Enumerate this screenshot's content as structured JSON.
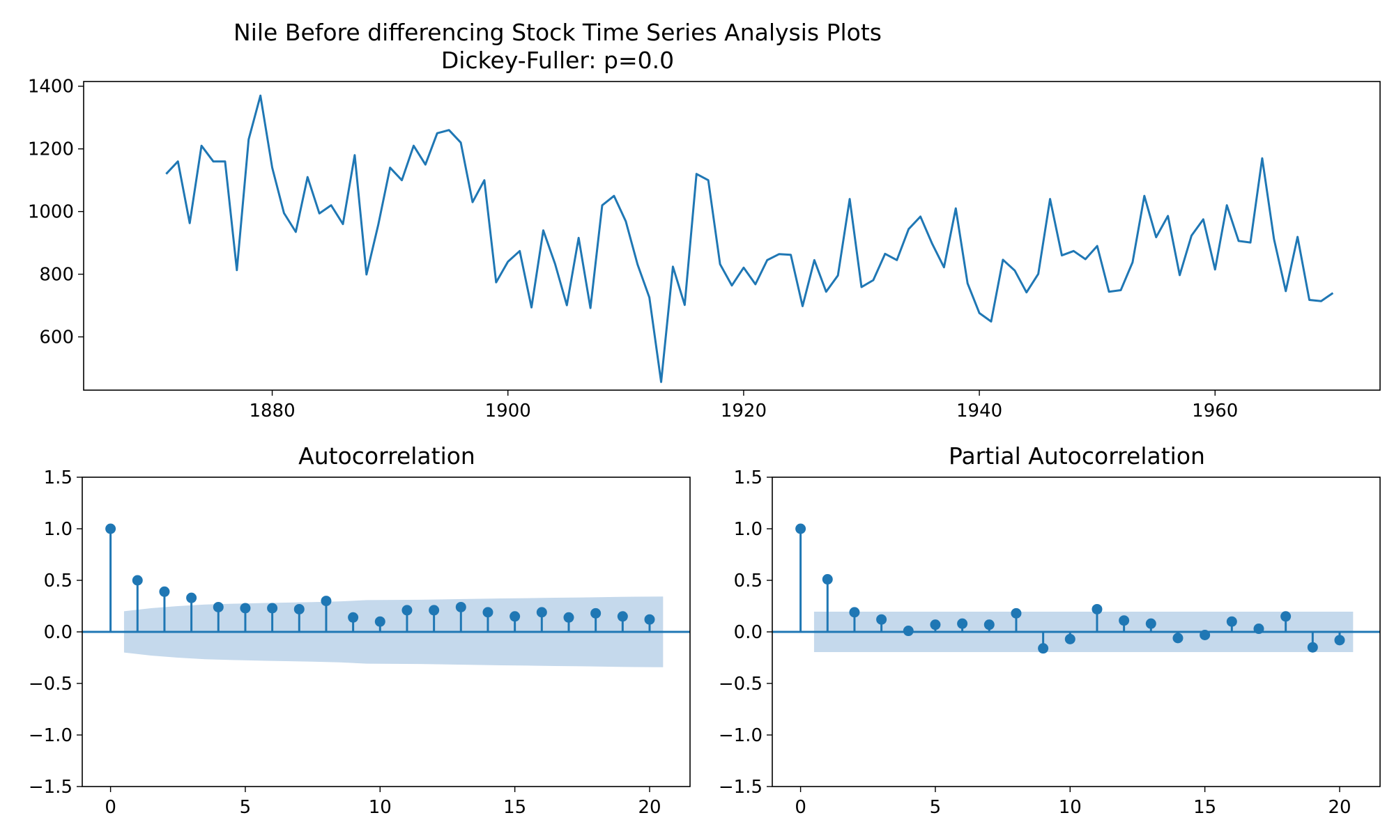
{
  "figure": {
    "title_line1": "Nile Before differencing Stock Time Series Analysis Plots",
    "title_line2": "Dickey-Fuller: p=0.0"
  },
  "chart_data": [
    {
      "type": "line",
      "name": "time-series",
      "color": "#1f77b4",
      "x_start": 1871,
      "x_end": 1970,
      "xlim": [
        1864,
        1974
      ],
      "ylim": [
        430,
        1415
      ],
      "xticks": [
        1880,
        1900,
        1920,
        1940,
        1960
      ],
      "xtick_labels": [
        "1880",
        "1900",
        "1920",
        "1940",
        "1960"
      ],
      "yticks": [
        600,
        800,
        1000,
        1200,
        1400
      ],
      "ytick_labels": [
        "600",
        "800",
        "1000",
        "1200",
        "1400"
      ],
      "values": [
        1120,
        1160,
        963,
        1210,
        1160,
        1160,
        813,
        1230,
        1370,
        1140,
        995,
        935,
        1110,
        994,
        1020,
        960,
        1180,
        799,
        958,
        1140,
        1100,
        1210,
        1150,
        1250,
        1260,
        1220,
        1030,
        1100,
        774,
        840,
        874,
        694,
        940,
        833,
        701,
        916,
        692,
        1020,
        1050,
        969,
        831,
        726,
        456,
        824,
        702,
        1120,
        1100,
        832,
        764,
        821,
        768,
        845,
        864,
        862,
        698,
        845,
        744,
        796,
        1040,
        759,
        781,
        865,
        845,
        944,
        984,
        897,
        822,
        1010,
        771,
        676,
        649,
        846,
        812,
        742,
        801,
        1040,
        860,
        874,
        848,
        890,
        744,
        749,
        838,
        1050,
        918,
        986,
        797,
        923,
        975,
        815,
        1020,
        906,
        901,
        1170,
        912,
        746,
        919,
        718,
        714,
        740
      ]
    },
    {
      "type": "scatter",
      "name": "acf",
      "title": "Autocorrelation",
      "color": "#1f77b4",
      "band_color": "#c5d9ec",
      "xlim": [
        -1.05,
        21.5
      ],
      "ylim": [
        -1.5,
        1.5
      ],
      "xticks": [
        0,
        5,
        10,
        15,
        20
      ],
      "xtick_labels": [
        "0",
        "5",
        "10",
        "15",
        "20"
      ],
      "yticks": [
        -1.5,
        -1.0,
        -0.5,
        0.0,
        0.5,
        1.0,
        1.5
      ],
      "ytick_labels": [
        "−1.5",
        "−1.0",
        "−0.5",
        "0.0",
        "0.5",
        "1.0",
        "1.5"
      ],
      "lags": [
        0,
        1,
        2,
        3,
        4,
        5,
        6,
        7,
        8,
        9,
        10,
        11,
        12,
        13,
        14,
        15,
        16,
        17,
        18,
        19,
        20
      ],
      "values": [
        1.0,
        0.5,
        0.39,
        0.33,
        0.24,
        0.23,
        0.23,
        0.22,
        0.3,
        0.14,
        0.1,
        0.21,
        0.21,
        0.24,
        0.19,
        0.15,
        0.19,
        0.14,
        0.18,
        0.15,
        0.12
      ],
      "band_x": [
        0.5,
        1.5,
        2.5,
        3.5,
        4.5,
        5.5,
        6.5,
        7.5,
        8.5,
        9.5,
        10.5,
        11.5,
        12.5,
        13.5,
        14.5,
        15.5,
        16.5,
        17.5,
        18.5,
        19.5,
        20.5
      ],
      "band_upper": [
        0.2,
        0.23,
        0.25,
        0.265,
        0.273,
        0.279,
        0.284,
        0.289,
        0.296,
        0.308,
        0.31,
        0.312,
        0.316,
        0.32,
        0.324,
        0.327,
        0.331,
        0.334,
        0.338,
        0.341,
        0.343
      ],
      "band_lower": [
        -0.2,
        -0.23,
        -0.25,
        -0.265,
        -0.273,
        -0.279,
        -0.284,
        -0.289,
        -0.296,
        -0.308,
        -0.31,
        -0.312,
        -0.316,
        -0.32,
        -0.324,
        -0.327,
        -0.331,
        -0.334,
        -0.338,
        -0.341,
        -0.343
      ]
    },
    {
      "type": "scatter",
      "name": "pacf",
      "title": "Partial Autocorrelation",
      "color": "#1f77b4",
      "band_color": "#c5d9ec",
      "xlim": [
        -1.05,
        21.5
      ],
      "ylim": [
        -1.5,
        1.5
      ],
      "xticks": [
        0,
        5,
        10,
        15,
        20
      ],
      "xtick_labels": [
        "0",
        "5",
        "10",
        "15",
        "20"
      ],
      "yticks": [
        -1.5,
        -1.0,
        -0.5,
        0.0,
        0.5,
        1.0,
        1.5
      ],
      "ytick_labels": [
        "−1.5",
        "−1.0",
        "−0.5",
        "0.0",
        "0.5",
        "1.0",
        "1.5"
      ],
      "lags": [
        0,
        1,
        2,
        3,
        4,
        5,
        6,
        7,
        8,
        9,
        10,
        11,
        12,
        13,
        14,
        15,
        16,
        17,
        18,
        19,
        20
      ],
      "values": [
        1.0,
        0.51,
        0.19,
        0.12,
        0.01,
        0.07,
        0.08,
        0.07,
        0.18,
        -0.16,
        -0.07,
        0.22,
        0.11,
        0.08,
        -0.06,
        -0.03,
        0.1,
        0.03,
        0.15,
        -0.15,
        -0.08
      ],
      "band_x": [
        0.5,
        20.5
      ],
      "band_upper": [
        0.196,
        0.196
      ],
      "band_lower": [
        -0.196,
        -0.196
      ]
    }
  ]
}
